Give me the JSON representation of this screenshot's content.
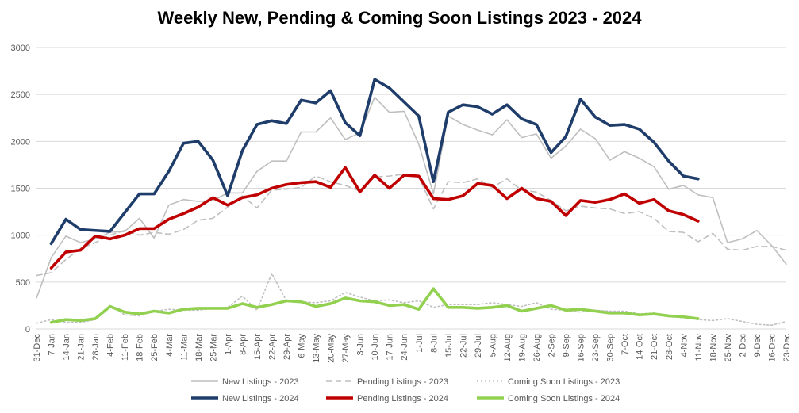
{
  "chart_data": {
    "type": "line",
    "title": "Weekly New, Pending & Coming Soon Listings 2023 - 2024",
    "xlabel": "",
    "ylabel": "",
    "ylim": [
      0,
      3000
    ],
    "y_ticks": [
      "0",
      "500",
      "1000",
      "1500",
      "2000",
      "2500",
      "3000"
    ],
    "grid": "horizontal",
    "legend_position": "bottom",
    "x_labels": [
      "31-Dec",
      "7-Jan",
      "14-Jan",
      "21-Jan",
      "28-Jan",
      "4-Feb",
      "11-Feb",
      "18-Feb",
      "25-Feb",
      "4-Mar",
      "11-Mar",
      "18-Mar",
      "25-Mar",
      "1-Apr",
      "8-Apr",
      "15-Apr",
      "22-Apr",
      "29-Apr",
      "6-May",
      "13-May",
      "20-May",
      "27-May",
      "3-Jun",
      "10-Jun",
      "17-Jun",
      "24-Jun",
      "1-Jul",
      "8-Jul",
      "15-Jul",
      "22-Jul",
      "29-Jul",
      "5-Aug",
      "12-Aug",
      "19-Aug",
      "26-Aug",
      "2-Sep",
      "9-Sep",
      "16-Sep",
      "23-Sep",
      "30-Sep",
      "7-Oct",
      "14-Oct",
      "21-Oct",
      "28-Oct",
      "4-Nov",
      "11-Nov",
      "18-Nov",
      "25-Nov",
      "2-Dec",
      "9-Dec",
      "16-Dec",
      "23-Dec"
    ],
    "series": [
      {
        "name": "New Listings - 2023",
        "color": "#bfbfbf",
        "style": "solid",
        "width": 1.6,
        "values": [
          330,
          760,
          990,
          920,
          960,
          1030,
          1040,
          1180,
          970,
          1320,
          1380,
          1360,
          1370,
          1450,
          1450,
          1680,
          1790,
          1790,
          2100,
          2100,
          2250,
          2020,
          2090,
          2470,
          2310,
          2320,
          1970,
          1440,
          2270,
          2180,
          2120,
          2070,
          2230,
          2040,
          2080,
          1820,
          1950,
          2130,
          2030,
          1800,
          1890,
          1820,
          1730,
          1490,
          1530,
          1430,
          1400,
          920,
          960,
          1050,
          890,
          690
        ]
      },
      {
        "name": "Pending Listings - 2023",
        "color": "#bfbfbf",
        "style": "dashed",
        "width": 1.6,
        "values": [
          570,
          600,
          740,
          860,
          920,
          1000,
          1050,
          1000,
          1030,
          1010,
          1060,
          1160,
          1180,
          1300,
          1420,
          1290,
          1480,
          1490,
          1510,
          1630,
          1570,
          1530,
          1470,
          1620,
          1630,
          1650,
          1620,
          1280,
          1570,
          1560,
          1600,
          1510,
          1600,
          1480,
          1460,
          1370,
          1260,
          1310,
          1290,
          1280,
          1230,
          1250,
          1180,
          1040,
          1030,
          930,
          1020,
          850,
          840,
          880,
          880,
          840
        ]
      },
      {
        "name": "Coming Soon Listings - 2023",
        "color": "#bfbfbf",
        "style": "dotted",
        "width": 1.6,
        "values": [
          60,
          100,
          70,
          70,
          100,
          250,
          150,
          140,
          190,
          210,
          200,
          200,
          220,
          230,
          350,
          200,
          590,
          300,
          290,
          280,
          300,
          390,
          340,
          300,
          310,
          280,
          300,
          230,
          260,
          260,
          260,
          280,
          260,
          240,
          280,
          210,
          200,
          180,
          200,
          190,
          190,
          160,
          170,
          130,
          120,
          100,
          90,
          110,
          80,
          50,
          40,
          80
        ]
      },
      {
        "name": "New Listings - 2024",
        "color": "#1f3d6b",
        "style": "solid",
        "width": 3.6,
        "values": [
          null,
          910,
          1170,
          1060,
          1050,
          1040,
          1240,
          1440,
          1440,
          1680,
          1980,
          2000,
          1800,
          1420,
          1900,
          2180,
          2220,
          2190,
          2440,
          2410,
          2540,
          2200,
          2060,
          2660,
          2570,
          2420,
          2270,
          1570,
          2310,
          2390,
          2370,
          2290,
          2390,
          2240,
          2180,
          1880,
          2050,
          2450,
          2260,
          2170,
          2180,
          2130,
          1990,
          1790,
          1630,
          1600,
          null,
          null,
          null,
          null,
          null,
          null
        ]
      },
      {
        "name": "Pending Listings - 2024",
        "color": "#c00000",
        "style": "solid",
        "width": 3.6,
        "values": [
          null,
          650,
          820,
          840,
          990,
          960,
          1000,
          1070,
          1070,
          1170,
          1230,
          1300,
          1400,
          1320,
          1400,
          1430,
          1500,
          1540,
          1560,
          1570,
          1510,
          1720,
          1460,
          1640,
          1500,
          1640,
          1630,
          1390,
          1380,
          1420,
          1550,
          1530,
          1390,
          1500,
          1390,
          1360,
          1210,
          1370,
          1350,
          1380,
          1440,
          1340,
          1380,
          1260,
          1220,
          1150,
          null,
          null,
          null,
          null,
          null,
          null
        ]
      },
      {
        "name": "Coming Soon Listings - 2024",
        "color": "#92d050",
        "style": "solid",
        "width": 3.6,
        "values": [
          null,
          70,
          100,
          90,
          110,
          240,
          180,
          160,
          190,
          170,
          210,
          220,
          220,
          220,
          270,
          230,
          260,
          300,
          290,
          240,
          270,
          330,
          300,
          290,
          250,
          260,
          210,
          430,
          230,
          230,
          220,
          230,
          250,
          190,
          220,
          250,
          200,
          210,
          190,
          170,
          170,
          150,
          160,
          140,
          130,
          110,
          null,
          null,
          null,
          null,
          null,
          null
        ]
      }
    ]
  }
}
